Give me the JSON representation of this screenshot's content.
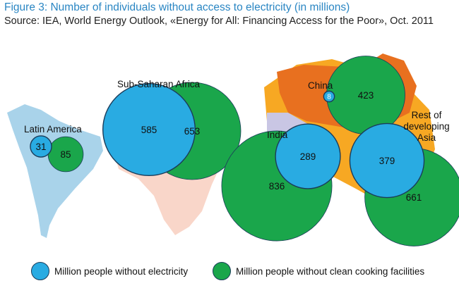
{
  "header": {
    "title": "Figure 3: Number of individuals without access to electricity (in millions)",
    "source": "Source: IEA, World Energy Outlook, «Energy for All: Financing Access for the Poor», Oct. 2011"
  },
  "colors": {
    "no_electricity": "#29abe2",
    "no_clean_cooking": "#1aa64b",
    "circle_outline": "#1b3c5a",
    "latin_america_land": "#a9d3ea",
    "africa_land": "#f9d6c9",
    "china_land": "#e8701f",
    "asia_land": "#f7a823",
    "india_land": "#c9c6e4",
    "title": "#2a86c3"
  },
  "chart_data": {
    "type": "bubble",
    "title": "Number of individuals without access to electricity (in millions)",
    "units": "millions",
    "series": [
      {
        "name": "Million people without electricity",
        "key": "no_electricity"
      },
      {
        "name": "Million people without clean cooking facilities",
        "key": "no_clean_cooking"
      }
    ],
    "regions": [
      {
        "id": "latin-america",
        "name": "Latin America",
        "no_electricity": 31,
        "no_clean_cooking": 85
      },
      {
        "id": "sub-saharan-africa",
        "name": "Sub-Saharan Africa",
        "no_electricity": 585,
        "no_clean_cooking": 653
      },
      {
        "id": "china",
        "name": "China",
        "no_electricity": 8,
        "no_clean_cooking": 423
      },
      {
        "id": "india",
        "name": "India",
        "no_electricity": 289,
        "no_clean_cooking": 836
      },
      {
        "id": "rest-of-asia",
        "name": "Rest of developing Asia",
        "no_electricity": 379,
        "no_clean_cooking": 661
      }
    ],
    "legend_position": "bottom",
    "legend": [
      "Million people without electricity",
      "Million people without clean cooking facilities"
    ]
  }
}
